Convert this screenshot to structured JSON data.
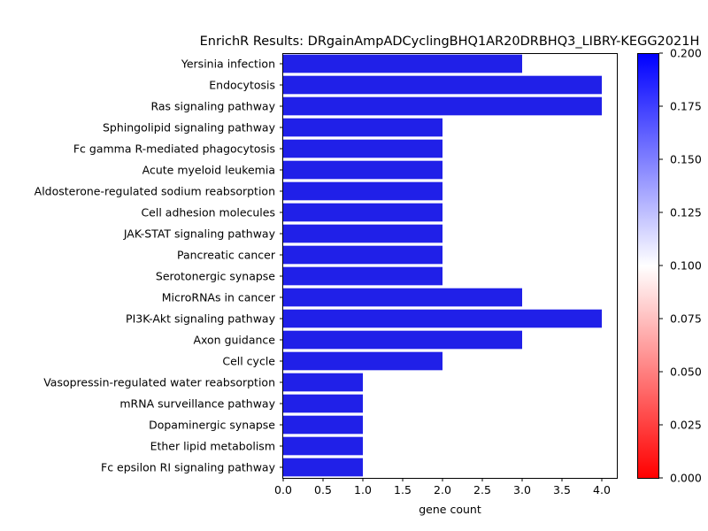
{
  "chart_data": {
    "type": "bar",
    "orientation": "horizontal",
    "title": "EnrichR Results: DRgainAmpADCyclingBHQ1AR20DRBHQ3_LIBRY-KEGG2021H",
    "xlabel": "gene count",
    "ylabel": "",
    "xlim": [
      0,
      4.2
    ],
    "x_ticks": [
      "0.0",
      "0.5",
      "1.0",
      "1.5",
      "2.0",
      "2.5",
      "3.0",
      "3.5",
      "4.0"
    ],
    "categories": [
      "Yersinia infection",
      "Endocytosis",
      "Ras signaling pathway",
      "Sphingolipid signaling pathway",
      "Fc gamma R-mediated phagocytosis",
      "Acute myeloid leukemia",
      "Aldosterone-regulated sodium reabsorption",
      "Cell adhesion molecules",
      "JAK-STAT signaling pathway",
      "Pancreatic cancer",
      "Serotonergic synapse",
      "MicroRNAs in cancer",
      "PI3K-Akt signaling pathway",
      "Axon guidance",
      "Cell cycle",
      "Vasopressin-regulated water reabsorption",
      "mRNA surveillance pathway",
      "Dopaminergic synapse",
      "Ether lipid metabolism",
      "Fc epsilon RI signaling pathway"
    ],
    "values": [
      3,
      4,
      4,
      2,
      2,
      2,
      2,
      2,
      2,
      2,
      2,
      3,
      4,
      3,
      2,
      1,
      1,
      1,
      1,
      1
    ],
    "bar_color": "#2020e8",
    "grid": false,
    "colorbar": {
      "range": [
        0.0,
        0.2
      ],
      "ticks": [
        "0.000",
        "0.025",
        "0.050",
        "0.075",
        "0.100",
        "0.125",
        "0.150",
        "0.175",
        "0.200"
      ],
      "colors": [
        "#ff0000",
        "#ffffff",
        "#0000ff"
      ]
    }
  }
}
